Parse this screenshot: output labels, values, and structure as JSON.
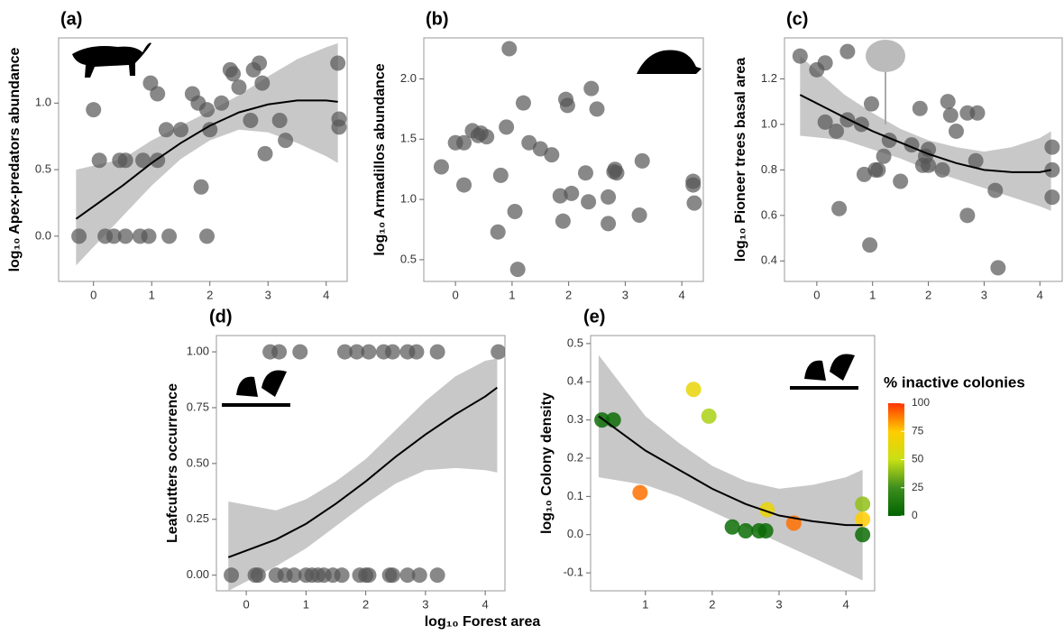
{
  "figure": {
    "xlabel": "log₁₀ Forest area"
  },
  "chart_data": [
    {
      "type": "scatter",
      "panel": "(a)",
      "ylabel": "log₁₀ Apex-predators abundance",
      "x": [
        -0.25,
        0.0,
        0.1,
        0.2,
        0.35,
        0.45,
        0.55,
        0.55,
        0.8,
        0.85,
        0.95,
        0.98,
        1.1,
        1.1,
        1.25,
        1.3,
        1.5,
        1.7,
        1.85,
        1.8,
        1.95,
        1.95,
        2.0,
        2.2,
        2.35,
        2.4,
        2.5,
        2.7,
        2.75,
        2.85,
        2.9,
        2.95,
        3.2,
        3.3,
        4.2,
        4.22,
        4.22
      ],
      "values": [
        0,
        0.95,
        0.57,
        0,
        0,
        0.57,
        0.57,
        0,
        0,
        0.57,
        0,
        1.15,
        1.07,
        0.57,
        0.8,
        0,
        0.8,
        1.07,
        0.37,
        1.0,
        0.95,
        0,
        0.8,
        1.0,
        1.25,
        1.22,
        1.12,
        0.87,
        1.25,
        1.3,
        1.15,
        0.62,
        0.87,
        0.72,
        1.3,
        0.88,
        0.82
      ],
      "color": "#555555",
      "fit": {
        "x": [
          -0.3,
          0.5,
          1,
          1.5,
          2,
          2.5,
          3,
          3.5,
          4,
          4.2
        ],
        "y": [
          0.13,
          0.38,
          0.55,
          0.7,
          0.83,
          0.93,
          0.99,
          1.02,
          1.02,
          1.01
        ],
        "lower": [
          -0.22,
          0.15,
          0.38,
          0.58,
          0.72,
          0.8,
          0.78,
          0.7,
          0.6,
          0.55
        ],
        "upper": [
          0.5,
          0.58,
          0.72,
          0.83,
          0.94,
          1.06,
          1.2,
          1.33,
          1.42,
          1.45
        ]
      },
      "xlim": [
        -0.6,
        4.36
      ],
      "xticks": [
        0,
        1,
        2,
        3,
        4
      ],
      "ylim": [
        -0.34,
        1.49
      ],
      "yticks": [
        {
          "value": 0,
          "label": "0.0"
        },
        0.5,
        {
          "value": 1,
          "label": "1.0"
        }
      ]
    },
    {
      "type": "scatter",
      "panel": "(b)",
      "ylabel": "log₁₀ Armadillos abundance",
      "x": [
        -0.25,
        0.0,
        0.15,
        0.15,
        0.3,
        0.4,
        0.45,
        0.55,
        0.75,
        0.8,
        0.9,
        0.95,
        1.05,
        1.1,
        1.2,
        1.3,
        1.5,
        1.7,
        1.85,
        1.9,
        1.95,
        1.98,
        2.05,
        2.3,
        2.35,
        2.4,
        2.5,
        2.7,
        2.7,
        2.8,
        2.82,
        2.85,
        3.25,
        3.3,
        4.2,
        4.2,
        4.22
      ],
      "values": [
        1.27,
        1.47,
        1.12,
        1.47,
        1.57,
        1.53,
        1.55,
        1.52,
        0.73,
        1.2,
        1.6,
        2.25,
        0.9,
        0.42,
        1.8,
        1.47,
        1.42,
        1.37,
        1.03,
        0.82,
        1.83,
        1.78,
        1.05,
        1.22,
        0.98,
        1.92,
        1.75,
        0.8,
        1.02,
        1.23,
        1.25,
        1.22,
        0.87,
        1.32,
        1.15,
        1.12,
        0.97
      ],
      "color": "#555555",
      "xlim": [
        -0.56,
        4.38
      ],
      "xticks": [
        0,
        1,
        2,
        3,
        4
      ],
      "ylim": [
        0.32,
        2.34
      ],
      "yticks": [
        0.5,
        {
          "value": 1,
          "label": "1.0"
        },
        1.5,
        {
          "value": 2,
          "label": "2.0"
        }
      ]
    },
    {
      "type": "scatter",
      "panel": "(c)",
      "ylabel": "log₁₀ Pioneer trees basal area",
      "x": [
        -0.3,
        0.0,
        0.15,
        0.15,
        0.35,
        0.4,
        0.55,
        0.55,
        0.8,
        0.85,
        0.95,
        0.98,
        1.05,
        1.1,
        1.2,
        1.3,
        1.5,
        1.7,
        1.85,
        1.9,
        1.95,
        2.0,
        2.0,
        2.25,
        2.35,
        2.4,
        2.5,
        2.7,
        2.7,
        2.85,
        2.88,
        3.2,
        3.25,
        4.22,
        4.22,
        4.22
      ],
      "values": [
        1.3,
        1.24,
        1.27,
        1.01,
        0.97,
        0.63,
        1.32,
        1.02,
        1.0,
        0.78,
        0.47,
        1.09,
        0.8,
        0.8,
        0.86,
        0.93,
        0.75,
        0.91,
        1.07,
        0.82,
        0.86,
        0.89,
        0.82,
        0.8,
        1.1,
        1.04,
        0.97,
        0.6,
        1.05,
        0.84,
        1.05,
        0.71,
        0.37,
        0.9,
        0.8,
        0.68
      ],
      "color": "#555555",
      "fit": {
        "x": [
          -0.3,
          0.5,
          1,
          1.5,
          2,
          2.5,
          3,
          3.5,
          4,
          4.2
        ],
        "y": [
          1.13,
          1.03,
          0.97,
          0.92,
          0.87,
          0.83,
          0.8,
          0.79,
          0.79,
          0.8
        ],
        "lower": [
          0.95,
          0.93,
          0.89,
          0.85,
          0.8,
          0.76,
          0.72,
          0.68,
          0.64,
          0.62
        ],
        "upper": [
          1.3,
          1.13,
          1.05,
          0.98,
          0.93,
          0.9,
          0.88,
          0.9,
          0.94,
          0.97
        ]
      },
      "xlim": [
        -0.58,
        4.4
      ],
      "xticks": [
        0,
        1,
        2,
        3,
        4
      ],
      "ylim": [
        0.31,
        1.38
      ],
      "yticks": [
        0.4,
        0.6,
        0.8,
        {
          "value": 1,
          "label": "1.0"
        },
        1.2
      ]
    },
    {
      "type": "scatter",
      "panel": "(d)",
      "ylabel": "Leafcutters occurrence",
      "x": [
        0.4,
        0.55,
        0.9,
        1.65,
        1.85,
        2.05,
        2.3,
        2.45,
        2.7,
        2.85,
        3.2,
        4.22,
        -0.25,
        0.15,
        0.2,
        0.5,
        0.65,
        0.8,
        1.0,
        1.1,
        1.2,
        1.3,
        1.45,
        1.6,
        1.9,
        2.0,
        2.05,
        2.4,
        2.45,
        2.7,
        2.9,
        3.2
      ],
      "values": [
        1,
        1,
        1,
        1,
        1,
        1,
        1,
        1,
        1,
        1,
        1,
        1,
        0,
        0,
        0,
        0,
        0,
        0,
        0,
        0,
        0,
        0,
        0,
        0,
        0,
        0,
        0,
        0,
        0,
        0,
        0,
        0
      ],
      "color": "#555555",
      "fit": {
        "x": [
          -0.3,
          0.5,
          1,
          1.5,
          2,
          2.5,
          3,
          3.5,
          4,
          4.2
        ],
        "y": [
          0.08,
          0.16,
          0.23,
          0.32,
          0.42,
          0.53,
          0.63,
          0.72,
          0.8,
          0.84
        ],
        "lower": [
          -0.07,
          0.04,
          0.12,
          0.22,
          0.32,
          0.41,
          0.47,
          0.48,
          0.47,
          0.46
        ],
        "upper": [
          0.33,
          0.29,
          0.34,
          0.42,
          0.52,
          0.65,
          0.78,
          0.89,
          0.96,
          0.97
        ]
      },
      "xlim": [
        -0.5,
        4.33
      ],
      "xticks": [
        0,
        1,
        2,
        3,
        4
      ],
      "ylim": [
        -0.07,
        1.073
      ],
      "yticks": [
        {
          "value": 0,
          "label": "0.00"
        },
        0.25,
        {
          "value": 0.5,
          "label": "0.50"
        },
        0.75,
        {
          "value": 1,
          "label": "1.00"
        }
      ]
    },
    {
      "type": "scatter",
      "panel": "(e)",
      "ylabel": "log₁₀ Colony density",
      "x": [
        0.35,
        0.52,
        0.92,
        1.72,
        1.95,
        2.3,
        2.5,
        2.7,
        2.8,
        2.82,
        3.22,
        4.25,
        4.25,
        4.25
      ],
      "values": [
        0.3,
        0.3,
        0.11,
        0.38,
        0.31,
        0.02,
        0.01,
        0.01,
        0.01,
        0.065,
        0.03,
        0.08,
        0.04,
        0.0
      ],
      "color_values": [
        5,
        5,
        90,
        65,
        45,
        5,
        5,
        5,
        5,
        65,
        90,
        40,
        75,
        5
      ],
      "colorbar": {
        "title": "% inactive colonies",
        "lim": [
          0,
          100
        ],
        "ticks": [
          0,
          25,
          50,
          75,
          100
        ],
        "colors": [
          "#006400",
          "#3e8e1e",
          "#c8e014",
          "#ffcc00",
          "#ff3300"
        ]
      },
      "fit": {
        "x": [
          0.3,
          1,
          1.5,
          2,
          2.5,
          3,
          3.5,
          4,
          4.25
        ],
        "y": [
          0.31,
          0.22,
          0.17,
          0.12,
          0.08,
          0.05,
          0.035,
          0.025,
          0.025
        ],
        "lower": [
          0.15,
          0.13,
          0.1,
          0.06,
          0.02,
          -0.02,
          -0.06,
          -0.1,
          -0.12
        ],
        "upper": [
          0.47,
          0.31,
          0.24,
          0.18,
          0.14,
          0.12,
          0.13,
          0.15,
          0.17
        ]
      },
      "xlim": [
        0.18,
        4.43
      ],
      "xticks": [
        1,
        2,
        3,
        4
      ],
      "ylim": [
        -0.147,
        0.521
      ],
      "yticks": [
        -0.1,
        {
          "value": 0,
          "label": "0.0"
        },
        0.1,
        0.2,
        0.3,
        0.4,
        0.5
      ]
    }
  ]
}
